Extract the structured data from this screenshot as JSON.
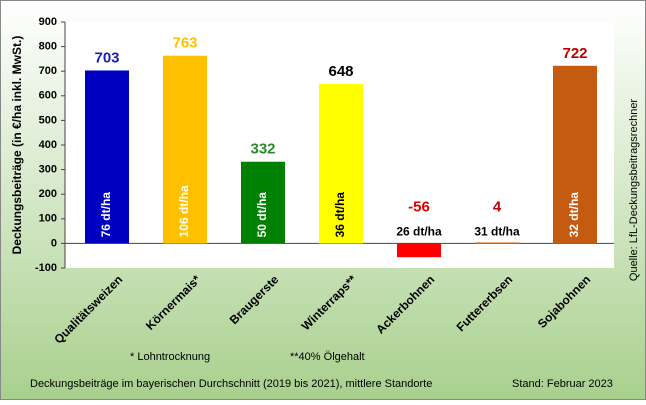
{
  "chart_data": {
    "type": "bar",
    "y_label": "Deckungsbeiträge  (in €/ha inkl. MwSt.)",
    "categories": [
      "Qualitätsweizen",
      "Körnermais*",
      "Braugerste",
      "Winterraps**",
      "Ackerbohnen",
      "Futtererbsen",
      "Sojabohnen"
    ],
    "values": [
      703,
      763,
      332,
      648,
      -56,
      4,
      722
    ],
    "colors": [
      "#0000c0",
      "#ffc000",
      "#008000",
      "#ffff00",
      "#ff0000",
      "#e07020",
      "#c55a11"
    ],
    "value_label_colors": [
      "#1c1cb0",
      "#ffc000",
      "#2a8a2a",
      "#000000",
      "#e00000",
      "#c00000",
      "#c00000"
    ],
    "bar_labels": [
      "76 dt/ha",
      "106 dt/ha",
      "50 dt/ha",
      "36 dt/ha",
      "26 dt/ha",
      "31 dt/ha",
      "32 dt/ha"
    ],
    "bar_label_colors": [
      "#ffffff",
      "#ffffff",
      "#ffffff",
      "#000000",
      "#000000",
      "#000000",
      "#ffffff"
    ],
    "ylim": [
      -100,
      900
    ],
    "yticks": [
      -100,
      0,
      100,
      200,
      300,
      400,
      500,
      600,
      700,
      800,
      900
    ],
    "grid": false,
    "source": "Quelle: LfL-Deckungsbeitragsrechner",
    "footnotes": [
      "* Lohntrocknung",
      "**40% Ölgehalt"
    ],
    "caption": "Deckungsbeiträge im bayerischen Durchschnitt  (2019 bis 2021), mittlere Standorte",
    "date_note": "Stand: Februar 2023"
  }
}
